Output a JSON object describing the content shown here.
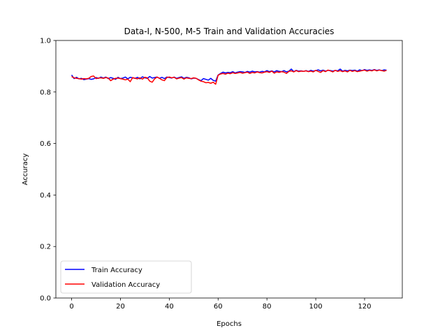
{
  "chart_data": {
    "type": "line",
    "title": "Data-I, N-500, M-5 Train and Validation Accuracies",
    "xlabel": "Epochs",
    "ylabel": "Accuracy",
    "xlim": [
      -6.45,
      135.45
    ],
    "ylim": [
      0.0,
      1.0
    ],
    "xticks": [
      0,
      20,
      40,
      60,
      80,
      100,
      120
    ],
    "yticks": [
      0.0,
      0.2,
      0.4,
      0.6,
      0.8,
      1.0
    ],
    "xtick_labels": [
      "0",
      "20",
      "40",
      "60",
      "80",
      "100",
      "120"
    ],
    "ytick_labels": [
      "0.0",
      "0.2",
      "0.4",
      "0.6",
      "0.8",
      "1.0"
    ],
    "grid": false,
    "legend_position": "lower-left",
    "series": [
      {
        "name": "Train Accuracy",
        "color": "#0000ff",
        "x_start": 0,
        "x_step": 1,
        "values": [
          0.866,
          0.852,
          0.857,
          0.851,
          0.853,
          0.848,
          0.85,
          0.852,
          0.849,
          0.851,
          0.856,
          0.853,
          0.858,
          0.854,
          0.858,
          0.852,
          0.856,
          0.853,
          0.849,
          0.857,
          0.852,
          0.854,
          0.858,
          0.851,
          0.857,
          0.855,
          0.853,
          0.857,
          0.851,
          0.859,
          0.855,
          0.853,
          0.86,
          0.854,
          0.856,
          0.858,
          0.853,
          0.857,
          0.852,
          0.858,
          0.856,
          0.854,
          0.858,
          0.853,
          0.856,
          0.859,
          0.853,
          0.857,
          0.855,
          0.851,
          0.854,
          0.853,
          0.848,
          0.844,
          0.852,
          0.849,
          0.846,
          0.853,
          0.845,
          0.842,
          0.866,
          0.872,
          0.877,
          0.874,
          0.876,
          0.875,
          0.879,
          0.874,
          0.877,
          0.879,
          0.878,
          0.876,
          0.88,
          0.877,
          0.881,
          0.878,
          0.879,
          0.877,
          0.88,
          0.878,
          0.883,
          0.879,
          0.882,
          0.878,
          0.883,
          0.88,
          0.879,
          0.883,
          0.878,
          0.881,
          0.889,
          0.879,
          0.884,
          0.881,
          0.882,
          0.88,
          0.883,
          0.88,
          0.884,
          0.881,
          0.883,
          0.886,
          0.882,
          0.885,
          0.881,
          0.884,
          0.883,
          0.881,
          0.884,
          0.882,
          0.889,
          0.881,
          0.884,
          0.882,
          0.885,
          0.883,
          0.885,
          0.881,
          0.886,
          0.883,
          0.887,
          0.884,
          0.886,
          0.884,
          0.887,
          0.884,
          0.886,
          0.883,
          0.886,
          0.885
        ]
      },
      {
        "name": "Validation Accuracy",
        "color": "#ff0000",
        "x_start": 0,
        "x_step": 1,
        "values": [
          0.86,
          0.855,
          0.853,
          0.852,
          0.85,
          0.852,
          0.851,
          0.853,
          0.86,
          0.862,
          0.852,
          0.854,
          0.855,
          0.853,
          0.856,
          0.854,
          0.844,
          0.85,
          0.853,
          0.854,
          0.852,
          0.85,
          0.847,
          0.85,
          0.84,
          0.856,
          0.853,
          0.851,
          0.855,
          0.85,
          0.857,
          0.855,
          0.842,
          0.838,
          0.851,
          0.858,
          0.853,
          0.847,
          0.844,
          0.856,
          0.858,
          0.855,
          0.857,
          0.851,
          0.854,
          0.856,
          0.85,
          0.855,
          0.853,
          0.852,
          0.855,
          0.853,
          0.847,
          0.842,
          0.84,
          0.836,
          0.837,
          0.834,
          0.838,
          0.83,
          0.865,
          0.87,
          0.872,
          0.869,
          0.873,
          0.871,
          0.875,
          0.872,
          0.874,
          0.876,
          0.873,
          0.875,
          0.877,
          0.872,
          0.876,
          0.874,
          0.878,
          0.875,
          0.874,
          0.877,
          0.879,
          0.876,
          0.881,
          0.873,
          0.878,
          0.876,
          0.879,
          0.877,
          0.872,
          0.88,
          0.882,
          0.878,
          0.883,
          0.879,
          0.881,
          0.88,
          0.882,
          0.879,
          0.881,
          0.878,
          0.884,
          0.88,
          0.876,
          0.883,
          0.879,
          0.885,
          0.882,
          0.878,
          0.884,
          0.88,
          0.883,
          0.879,
          0.882,
          0.878,
          0.884,
          0.88,
          0.883,
          0.879,
          0.881,
          0.883,
          0.885,
          0.881,
          0.884,
          0.882,
          0.886,
          0.882,
          0.885,
          0.883,
          0.881,
          0.884
        ]
      }
    ]
  }
}
